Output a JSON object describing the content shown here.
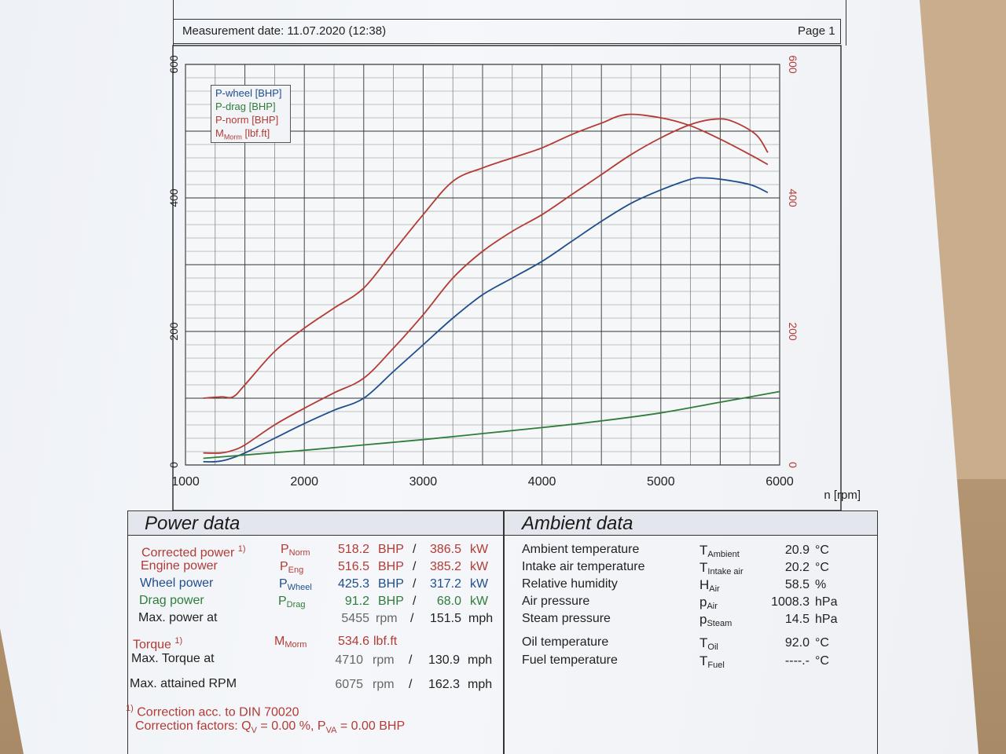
{
  "header": {
    "measurement_date": "Measurement date: 11.07.2020 (12:38)",
    "page": "Page 1"
  },
  "chart_data": {
    "type": "line",
    "xlabel": "n [rpm]",
    "x_ticks": [
      "1000",
      "2000",
      "3000",
      "4000",
      "5000",
      "6000"
    ],
    "y_left_ticks": [
      "0",
      "200",
      "400",
      "600"
    ],
    "y_right_ticks": [
      "0",
      "200",
      "400",
      "600"
    ],
    "xlim": [
      1000,
      6000
    ],
    "ylim": [
      0,
      600
    ],
    "grid": true,
    "legend_position": "top-left",
    "series": [
      {
        "name": "P-wheel [BHP]",
        "color": "#1f4e8c",
        "x": [
          1150,
          1250,
          1350,
          1500,
          1750,
          2000,
          2250,
          2500,
          2750,
          3000,
          3250,
          3500,
          3750,
          4000,
          4250,
          4500,
          4750,
          5000,
          5250,
          5350,
          5500,
          5750,
          5900
        ],
        "y": [
          5,
          5,
          8,
          18,
          40,
          62,
          82,
          100,
          140,
          180,
          220,
          255,
          280,
          305,
          335,
          365,
          392,
          412,
          428,
          430,
          428,
          420,
          408
        ]
      },
      {
        "name": "P-drag [BHP]",
        "color": "#2e7d3a",
        "x": [
          1150,
          1500,
          2000,
          2500,
          3000,
          3500,
          4000,
          4500,
          5000,
          5500,
          6000
        ],
        "y": [
          10,
          15,
          22,
          30,
          38,
          47,
          56,
          66,
          78,
          94,
          110
        ]
      },
      {
        "name": "P-norm [BHP]",
        "color": "#b33a35",
        "x": [
          1150,
          1300,
          1400,
          1500,
          1750,
          2000,
          2250,
          2500,
          2750,
          3000,
          3250,
          3500,
          3750,
          4000,
          4250,
          4500,
          4750,
          5000,
          5250,
          5455,
          5600,
          5800,
          5900
        ],
        "y": [
          18,
          18,
          22,
          30,
          60,
          85,
          108,
          130,
          175,
          225,
          280,
          320,
          350,
          375,
          405,
          435,
          465,
          490,
          510,
          518,
          515,
          495,
          468
        ]
      },
      {
        "name": "MMorm [lbf.ft]",
        "color": "#b33a35",
        "x": [
          1150,
          1300,
          1400,
          1500,
          1750,
          2000,
          2250,
          2500,
          2750,
          3000,
          3250,
          3500,
          3750,
          4000,
          4250,
          4500,
          4710,
          5000,
          5250,
          5500,
          5750,
          5900
        ],
        "y": [
          100,
          102,
          102,
          120,
          170,
          205,
          235,
          265,
          320,
          375,
          425,
          445,
          460,
          475,
          495,
          512,
          525,
          520,
          508,
          488,
          465,
          450
        ]
      }
    ]
  },
  "legend": {
    "wheel": "P-wheel [BHP]",
    "drag": "P-drag [BHP]",
    "norm": "P-norm [BHP]",
    "morm_prefix": "M",
    "morm_sub": "Morm",
    "morm_unit": " [lbf.ft]"
  },
  "power_data": {
    "title": "Power data",
    "rows": [
      {
        "label": "Corrected power",
        "note": "1)",
        "sym": "P",
        "sub": "Norm",
        "v1": "518.2",
        "u1": "BHP",
        "sep": "/",
        "v2": "386.5",
        "u2": "kW"
      },
      {
        "label": "Engine power",
        "sym": "P",
        "sub": "Eng",
        "v1": "516.5",
        "u1": "BHP",
        "sep": "/",
        "v2": "385.2",
        "u2": "kW"
      },
      {
        "label": "Wheel power",
        "sym": "P",
        "sub": "Wheel",
        "v1": "425.3",
        "u1": "BHP",
        "sep": "/",
        "v2": "317.2",
        "u2": "kW"
      },
      {
        "label": "Drag power",
        "sym": "P",
        "sub": "Drag",
        "v1": "91.2",
        "u1": "BHP",
        "sep": "/",
        "v2": "68.0",
        "u2": "kW"
      },
      {
        "label": "Max. power at",
        "v1": "5455",
        "u1": "rpm",
        "sep": "/",
        "v2": "151.5",
        "u2": "mph"
      }
    ],
    "torque": {
      "label": "Torque",
      "note": "1)",
      "sym": "M",
      "sub": "Morm",
      "v1": "534.6",
      "u1": "lbf.ft"
    },
    "max_torque": {
      "label": "Max. Torque at",
      "v1": "4710",
      "u1": "rpm",
      "sep": "/",
      "v2": "130.9",
      "u2": "mph"
    },
    "max_rpm": {
      "label": "Max. attained RPM",
      "v1": "6075",
      "u1": "rpm",
      "sep": "/",
      "v2": "162.3",
      "u2": "mph"
    },
    "footnote_mark": "1)",
    "footnote": "Correction acc. to DIN 70020",
    "correction_prefix": "Correction factors: Q",
    "correction_qsub": "V",
    "correction_mid": " =   0.00 %, P",
    "correction_psub": "VA",
    "correction_end": " =   0.00 BHP"
  },
  "ambient_data": {
    "title": "Ambient data",
    "rows": [
      {
        "label": "Ambient temperature",
        "sym": "T",
        "sub": "Ambient",
        "value": "20.9",
        "unit": "°C"
      },
      {
        "label": "Intake air temperature",
        "sym": "T",
        "sub": "Intake air",
        "value": "20.2",
        "unit": "°C"
      },
      {
        "label": "Relative humidity",
        "sym": "H",
        "sub": "Air",
        "value": "58.5",
        "unit": "%"
      },
      {
        "label": "Air pressure",
        "sym": "p",
        "sub": "Air",
        "value": "1008.3",
        "unit": "hPa"
      },
      {
        "label": "Steam pressure",
        "sym": "p",
        "sub": "Steam",
        "value": "14.5",
        "unit": "hPa"
      },
      {
        "label": "Oil temperature",
        "sym": "T",
        "sub": "Oil",
        "value": "92.0",
        "unit": "°C"
      },
      {
        "label": "Fuel temperature",
        "sym": "T",
        "sub": "Fuel",
        "value": "----.-",
        "unit": "°C"
      }
    ]
  }
}
